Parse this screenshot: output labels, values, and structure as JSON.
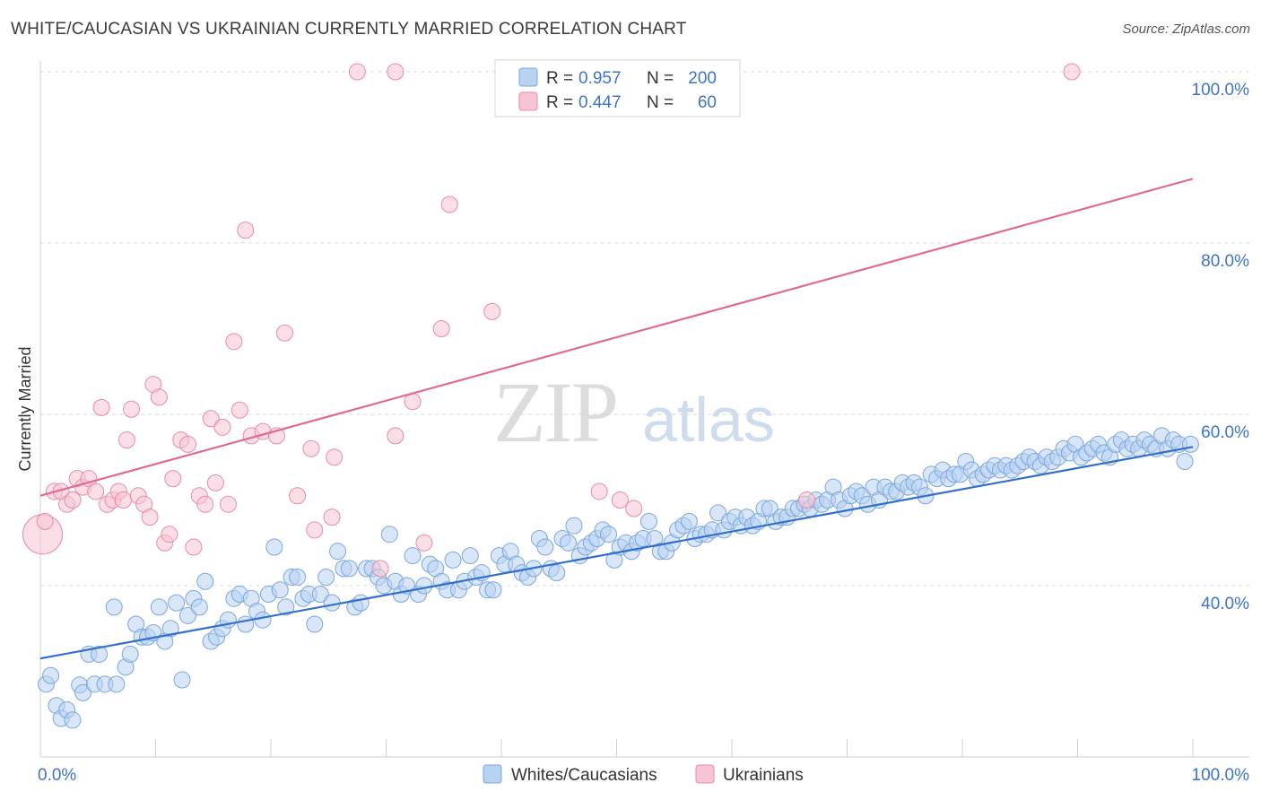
{
  "title": "WHITE/CAUCASIAN VS UKRAINIAN CURRENTLY MARRIED CORRELATION CHART",
  "source": "Source: ZipAtlas.com",
  "watermark": {
    "zip": "ZIP",
    "atlas": "atlas"
  },
  "colors": {
    "blue_fill": "#b8d2f2",
    "blue_stroke": "#7aa6dc",
    "blue_line": "#2f6fcc",
    "pink_fill": "#f8c4d4",
    "pink_stroke": "#e98aa8",
    "pink_line": "#e06a94",
    "grid": "#d9d9d9",
    "tick_text": "#3d74c9"
  },
  "legend": {
    "rows": [
      {
        "r_label": "R =",
        "r_value": "0.957",
        "n_label": "N =",
        "n_value": "200"
      },
      {
        "r_label": "R =",
        "r_value": "0.447",
        "n_label": "N =",
        "n_value": "60"
      }
    ]
  },
  "bottom_legend": [
    "Whites/Caucasians",
    "Ukrainians"
  ],
  "chart_data": {
    "type": "scatter",
    "title": "WHITE/CAUCASIAN VS UKRAINIAN CURRENTLY MARRIED CORRELATION CHART",
    "xlabel": "",
    "ylabel": "Currently Married",
    "xlim": [
      0,
      100
    ],
    "ylim": [
      20,
      100
    ],
    "x_tick_labels": [
      "0.0%",
      "100.0%"
    ],
    "y_ticks": [
      40,
      60,
      80,
      100
    ],
    "y_tick_labels": [
      "40.0%",
      "60.0%",
      "80.0%",
      "100.0%"
    ],
    "grid": "horizontal dashed",
    "legend_placement": "top-center",
    "series": [
      {
        "name": "Whites/Caucasians",
        "r": 0.957,
        "n": 200,
        "trend": {
          "x": [
            0,
            100
          ],
          "y": [
            31.5,
            56.2
          ]
        },
        "points": [
          [
            0.5,
            28.5
          ],
          [
            0.9,
            29.5
          ],
          [
            1.4,
            26.0
          ],
          [
            1.8,
            24.5
          ],
          [
            2.3,
            25.5
          ],
          [
            2.8,
            24.3
          ],
          [
            3.4,
            28.4
          ],
          [
            3.7,
            27.5
          ],
          [
            4.2,
            32.0
          ],
          [
            4.7,
            28.5
          ],
          [
            5.1,
            32.0
          ],
          [
            5.6,
            28.5
          ],
          [
            6.4,
            37.5
          ],
          [
            6.6,
            28.5
          ],
          [
            7.4,
            30.5
          ],
          [
            7.8,
            32.0
          ],
          [
            8.3,
            35.5
          ],
          [
            8.8,
            34.0
          ],
          [
            9.3,
            34.0
          ],
          [
            9.8,
            34.5
          ],
          [
            10.3,
            37.5
          ],
          [
            10.8,
            33.5
          ],
          [
            11.3,
            35.0
          ],
          [
            11.8,
            38.0
          ],
          [
            12.3,
            29.0
          ],
          [
            12.8,
            36.5
          ],
          [
            13.3,
            38.5
          ],
          [
            13.8,
            37.5
          ],
          [
            14.3,
            40.5
          ],
          [
            14.8,
            33.5
          ],
          [
            15.3,
            34.0
          ],
          [
            15.8,
            35.0
          ],
          [
            16.3,
            36.0
          ],
          [
            16.8,
            38.5
          ],
          [
            17.3,
            39.0
          ],
          [
            17.8,
            35.5
          ],
          [
            18.3,
            38.5
          ],
          [
            18.8,
            37.0
          ],
          [
            19.3,
            36.0
          ],
          [
            19.8,
            39.0
          ],
          [
            20.3,
            44.5
          ],
          [
            20.8,
            39.5
          ],
          [
            21.3,
            37.5
          ],
          [
            21.8,
            41.0
          ],
          [
            22.3,
            41.0
          ],
          [
            22.8,
            38.5
          ],
          [
            23.3,
            39.0
          ],
          [
            23.8,
            35.5
          ],
          [
            24.3,
            39.0
          ],
          [
            24.8,
            41.0
          ],
          [
            25.3,
            38.0
          ],
          [
            25.8,
            44.0
          ],
          [
            26.3,
            42.0
          ],
          [
            26.8,
            42.0
          ],
          [
            27.3,
            37.5
          ],
          [
            27.8,
            38.0
          ],
          [
            28.3,
            42.0
          ],
          [
            28.8,
            42.0
          ],
          [
            29.3,
            41.0
          ],
          [
            29.8,
            40.0
          ],
          [
            30.3,
            46.0
          ],
          [
            30.8,
            40.5
          ],
          [
            31.3,
            39.0
          ],
          [
            31.8,
            40.0
          ],
          [
            32.3,
            43.5
          ],
          [
            32.8,
            39.0
          ],
          [
            33.3,
            40.0
          ],
          [
            33.8,
            42.5
          ],
          [
            34.3,
            42.0
          ],
          [
            34.8,
            40.5
          ],
          [
            35.3,
            39.5
          ],
          [
            35.8,
            43.0
          ],
          [
            36.3,
            39.5
          ],
          [
            36.8,
            40.5
          ],
          [
            37.3,
            43.5
          ],
          [
            37.8,
            41.0
          ],
          [
            38.3,
            41.5
          ],
          [
            38.8,
            39.5
          ],
          [
            39.3,
            39.5
          ],
          [
            39.8,
            43.5
          ],
          [
            40.3,
            42.5
          ],
          [
            40.8,
            44.0
          ],
          [
            41.3,
            42.5
          ],
          [
            41.8,
            41.5
          ],
          [
            42.3,
            41.0
          ],
          [
            42.8,
            42.0
          ],
          [
            43.3,
            45.5
          ],
          [
            43.8,
            44.5
          ],
          [
            44.3,
            42.0
          ],
          [
            44.8,
            41.5
          ],
          [
            45.3,
            45.5
          ],
          [
            45.8,
            45.0
          ],
          [
            46.3,
            47.0
          ],
          [
            46.8,
            43.5
          ],
          [
            47.3,
            44.5
          ],
          [
            47.8,
            45.0
          ],
          [
            48.3,
            45.5
          ],
          [
            48.8,
            46.5
          ],
          [
            49.3,
            46.0
          ],
          [
            49.8,
            43.0
          ],
          [
            50.3,
            44.5
          ],
          [
            50.8,
            45.0
          ],
          [
            51.3,
            44.0
          ],
          [
            51.8,
            45.0
          ],
          [
            52.3,
            45.5
          ],
          [
            52.8,
            47.5
          ],
          [
            53.3,
            45.5
          ],
          [
            53.8,
            44.0
          ],
          [
            54.3,
            44.0
          ],
          [
            54.8,
            45.0
          ],
          [
            55.3,
            46.5
          ],
          [
            55.8,
            47.0
          ],
          [
            56.3,
            47.5
          ],
          [
            56.8,
            45.5
          ],
          [
            57.3,
            46.0
          ],
          [
            57.8,
            46.0
          ],
          [
            58.3,
            46.5
          ],
          [
            58.8,
            48.5
          ],
          [
            59.3,
            46.5
          ],
          [
            59.8,
            47.5
          ],
          [
            60.3,
            48.0
          ],
          [
            60.8,
            47.0
          ],
          [
            61.3,
            48.0
          ],
          [
            61.8,
            47.0
          ],
          [
            62.3,
            47.5
          ],
          [
            62.8,
            49.0
          ],
          [
            63.3,
            49.0
          ],
          [
            63.8,
            47.5
          ],
          [
            64.3,
            48.0
          ],
          [
            64.8,
            48.0
          ],
          [
            65.3,
            49.0
          ],
          [
            65.8,
            49.0
          ],
          [
            66.3,
            49.5
          ],
          [
            66.8,
            49.0
          ],
          [
            67.3,
            50.0
          ],
          [
            67.8,
            49.5
          ],
          [
            68.3,
            50.0
          ],
          [
            68.8,
            51.5
          ],
          [
            69.3,
            50.0
          ],
          [
            69.8,
            49.0
          ],
          [
            70.3,
            50.5
          ],
          [
            70.8,
            51.0
          ],
          [
            71.3,
            50.5
          ],
          [
            71.8,
            49.5
          ],
          [
            72.3,
            51.5
          ],
          [
            72.8,
            50.0
          ],
          [
            73.3,
            51.5
          ],
          [
            73.8,
            51.0
          ],
          [
            74.3,
            51.0
          ],
          [
            74.8,
            52.0
          ],
          [
            75.3,
            51.5
          ],
          [
            75.8,
            52.0
          ],
          [
            76.3,
            51.5
          ],
          [
            76.8,
            50.5
          ],
          [
            77.3,
            53.0
          ],
          [
            77.8,
            52.5
          ],
          [
            78.3,
            53.5
          ],
          [
            78.8,
            52.5
          ],
          [
            79.3,
            53.0
          ],
          [
            79.8,
            53.0
          ],
          [
            80.3,
            54.5
          ],
          [
            80.8,
            53.5
          ],
          [
            81.3,
            52.5
          ],
          [
            81.8,
            53.0
          ],
          [
            82.3,
            53.5
          ],
          [
            82.8,
            54.0
          ],
          [
            83.3,
            53.5
          ],
          [
            83.8,
            54.0
          ],
          [
            84.3,
            53.5
          ],
          [
            84.8,
            54.0
          ],
          [
            85.3,
            54.5
          ],
          [
            85.8,
            55.0
          ],
          [
            86.3,
            54.5
          ],
          [
            86.8,
            54.0
          ],
          [
            87.3,
            55.0
          ],
          [
            87.8,
            54.5
          ],
          [
            88.3,
            55.0
          ],
          [
            88.8,
            56.0
          ],
          [
            89.3,
            55.5
          ],
          [
            89.8,
            56.5
          ],
          [
            90.3,
            55.0
          ],
          [
            90.8,
            55.5
          ],
          [
            91.3,
            56.0
          ],
          [
            91.8,
            56.5
          ],
          [
            92.3,
            55.5
          ],
          [
            92.8,
            55.0
          ],
          [
            93.3,
            56.5
          ],
          [
            93.8,
            57.0
          ],
          [
            94.3,
            56.0
          ],
          [
            94.8,
            56.5
          ],
          [
            95.3,
            56.0
          ],
          [
            95.8,
            57.0
          ],
          [
            96.3,
            56.5
          ],
          [
            96.8,
            56.0
          ],
          [
            97.3,
            57.5
          ],
          [
            97.8,
            56.0
          ],
          [
            98.3,
            57.0
          ],
          [
            98.8,
            56.5
          ],
          [
            99.3,
            54.5
          ],
          [
            99.8,
            56.5
          ]
        ]
      },
      {
        "name": "Ukrainians",
        "r": 0.447,
        "n": 60,
        "trend": {
          "x": [
            0,
            100
          ],
          "y": [
            50.5,
            87.5
          ]
        },
        "points": [
          [
            0.2,
            46.0
          ],
          [
            0.4,
            47.5
          ],
          [
            1.2,
            51.0
          ],
          [
            1.8,
            51.0
          ],
          [
            2.3,
            49.5
          ],
          [
            2.8,
            50.0
          ],
          [
            3.2,
            52.5
          ],
          [
            3.7,
            51.5
          ],
          [
            4.2,
            52.5
          ],
          [
            4.8,
            51.0
          ],
          [
            5.3,
            60.8
          ],
          [
            5.8,
            49.5
          ],
          [
            6.3,
            50.0
          ],
          [
            6.8,
            51.0
          ],
          [
            7.2,
            50.0
          ],
          [
            7.5,
            57.0
          ],
          [
            7.9,
            60.6
          ],
          [
            8.5,
            50.5
          ],
          [
            9.0,
            49.5
          ],
          [
            9.5,
            48.0
          ],
          [
            9.8,
            63.5
          ],
          [
            10.3,
            62.0
          ],
          [
            10.8,
            45.0
          ],
          [
            11.2,
            46.0
          ],
          [
            11.5,
            52.5
          ],
          [
            12.2,
            57.0
          ],
          [
            12.8,
            56.5
          ],
          [
            13.3,
            44.5
          ],
          [
            13.8,
            50.5
          ],
          [
            14.3,
            49.5
          ],
          [
            14.8,
            59.5
          ],
          [
            15.2,
            52.0
          ],
          [
            15.8,
            58.5
          ],
          [
            16.3,
            49.5
          ],
          [
            16.8,
            68.5
          ],
          [
            17.3,
            60.5
          ],
          [
            17.8,
            81.5
          ],
          [
            18.3,
            57.5
          ],
          [
            19.3,
            58.0
          ],
          [
            20.5,
            57.5
          ],
          [
            21.2,
            69.5
          ],
          [
            22.3,
            50.5
          ],
          [
            23.5,
            56.0
          ],
          [
            23.8,
            46.5
          ],
          [
            25.3,
            48.0
          ],
          [
            25.5,
            55.0
          ],
          [
            27.5,
            100.0
          ],
          [
            29.5,
            42.0
          ],
          [
            30.8,
            100.0
          ],
          [
            30.8,
            57.5
          ],
          [
            32.3,
            61.5
          ],
          [
            33.3,
            45.0
          ],
          [
            34.8,
            70.0
          ],
          [
            35.5,
            84.5
          ],
          [
            39.2,
            72.0
          ],
          [
            48.5,
            51.0
          ],
          [
            50.3,
            50.0
          ],
          [
            51.5,
            49.0
          ],
          [
            66.5,
            50.0
          ],
          [
            89.5,
            100.0
          ]
        ]
      }
    ]
  }
}
